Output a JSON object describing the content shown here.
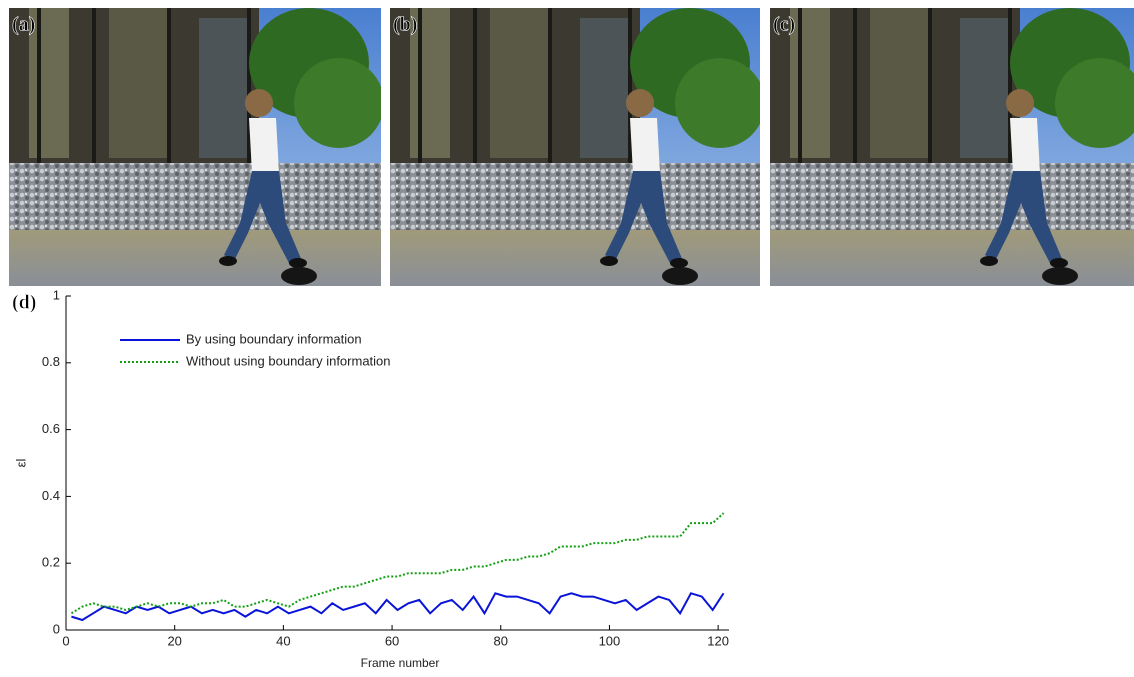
{
  "panels": [
    {
      "label": "(a)"
    },
    {
      "label": "(b)"
    },
    {
      "label": "(c)"
    }
  ],
  "chart_data": {
    "type": "line",
    "panel_label": "(d)",
    "x_label": "Frame number",
    "y_label": "εl",
    "x": [
      1,
      3,
      5,
      7,
      9,
      11,
      13,
      15,
      17,
      19,
      21,
      23,
      25,
      27,
      29,
      31,
      33,
      35,
      37,
      39,
      41,
      43,
      45,
      47,
      49,
      51,
      53,
      55,
      57,
      59,
      61,
      63,
      65,
      67,
      69,
      71,
      73,
      75,
      77,
      79,
      81,
      83,
      85,
      87,
      89,
      91,
      93,
      95,
      97,
      99,
      101,
      103,
      105,
      107,
      109,
      111,
      113,
      115,
      117,
      119,
      121
    ],
    "series": [
      {
        "name": "By using boundary information",
        "color": "#0a14d8",
        "dash": "solid",
        "values": [
          0.04,
          0.03,
          0.05,
          0.07,
          0.06,
          0.05,
          0.07,
          0.06,
          0.07,
          0.05,
          0.06,
          0.07,
          0.05,
          0.06,
          0.05,
          0.06,
          0.04,
          0.06,
          0.05,
          0.07,
          0.05,
          0.06,
          0.07,
          0.05,
          0.08,
          0.06,
          0.07,
          0.08,
          0.05,
          0.09,
          0.06,
          0.08,
          0.09,
          0.05,
          0.08,
          0.09,
          0.06,
          0.1,
          0.05,
          0.11,
          0.1,
          0.1,
          0.09,
          0.08,
          0.05,
          0.1,
          0.11,
          0.1,
          0.1,
          0.09,
          0.08,
          0.09,
          0.06,
          0.08,
          0.1,
          0.09,
          0.05,
          0.11,
          0.1,
          0.06,
          0.11
        ]
      },
      {
        "name": "Without using boundary information",
        "color": "#10a010",
        "dash": "dotted",
        "values": [
          0.05,
          0.07,
          0.08,
          0.07,
          0.07,
          0.06,
          0.07,
          0.08,
          0.07,
          0.08,
          0.08,
          0.07,
          0.08,
          0.08,
          0.09,
          0.07,
          0.07,
          0.08,
          0.09,
          0.08,
          0.07,
          0.09,
          0.1,
          0.11,
          0.12,
          0.13,
          0.13,
          0.14,
          0.15,
          0.16,
          0.16,
          0.17,
          0.17,
          0.17,
          0.17,
          0.18,
          0.18,
          0.19,
          0.19,
          0.2,
          0.21,
          0.21,
          0.22,
          0.22,
          0.23,
          0.25,
          0.25,
          0.25,
          0.26,
          0.26,
          0.26,
          0.27,
          0.27,
          0.28,
          0.28,
          0.28,
          0.28,
          0.32,
          0.32,
          0.32,
          0.35
        ]
      }
    ],
    "xlim": [
      0,
      122
    ],
    "ylim": [
      0,
      1
    ],
    "xticks": [
      0,
      20,
      40,
      60,
      80,
      100,
      120
    ],
    "yticks": [
      0,
      0.2,
      0.4,
      0.6,
      0.8,
      1
    ],
    "legend": "upper-left",
    "grid": false
  }
}
